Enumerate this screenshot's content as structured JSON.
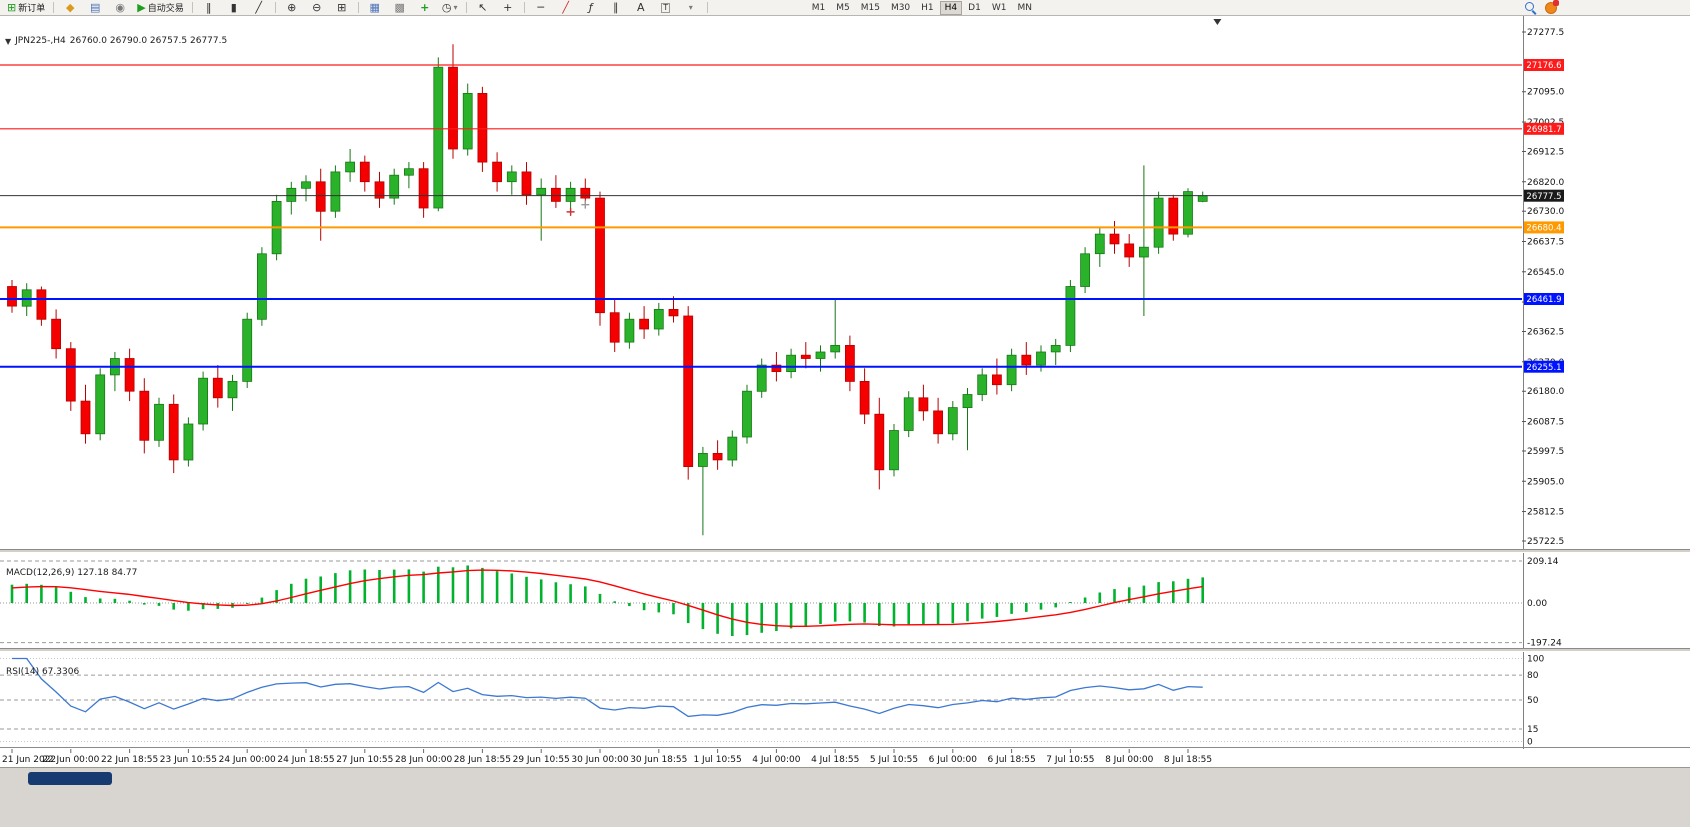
{
  "ui": {
    "collapse_caret": "▼"
  },
  "toolbar": {
    "buttons": {
      "new_order": {
        "icon": "⊞",
        "label": "新订单"
      },
      "profiles": {
        "glyph": "◆"
      },
      "print": {
        "glyph": "▤"
      },
      "signals": {
        "glyph": "◉"
      },
      "auto_trading": {
        "icon": "▶",
        "label": "自动交易"
      },
      "chart_bars": {
        "glyph": "‖"
      },
      "chart_candles": {
        "glyph": "▮"
      },
      "chart_line": {
        "glyph": "╱"
      },
      "zoom_in": {
        "glyph": "⊕"
      },
      "zoom_out": {
        "glyph": "⊖"
      },
      "tile_windows": {
        "glyph": "⊞"
      },
      "new_chart": {
        "glyph": "▦"
      },
      "arrange": {
        "glyph": "▩"
      },
      "indicators": {
        "glyph": "+"
      },
      "periods": {
        "glyph": "◷",
        "caret": "▾"
      },
      "cursor": {
        "glyph": "↖"
      },
      "crosshair": {
        "glyph": "+"
      },
      "hline": {
        "glyph": "─"
      },
      "trendline": {
        "glyph": "╱"
      },
      "fibonacci": {
        "glyph": "ƒ"
      },
      "channel": {
        "glyph": "∥"
      },
      "text": {
        "glyph": "A"
      },
      "label": {
        "glyph": "T"
      },
      "arrows": {
        "glyph": "▾"
      }
    },
    "timeframes": [
      "M1",
      "M5",
      "M15",
      "M30",
      "H1",
      "H4",
      "D1",
      "W1",
      "MN"
    ],
    "active_timeframe": "H4"
  },
  "chart_data": [
    {
      "type": "candlestick",
      "symbol": "JPN225-",
      "timeframe": "H4",
      "title": "JPN225-,H4",
      "ohlc_display": "26760.0 26790.0 26757.5 26777.5",
      "ylim": [
        25722.5,
        27277.5
      ],
      "y_ticks": [
        "27277.5",
        "27095.0",
        "27002.5",
        "26912.5",
        "26820.0",
        "26730.0",
        "26637.5",
        "26545.0",
        "26452.5",
        "26362.5",
        "26270.0",
        "26180.0",
        "26087.5",
        "25997.5",
        "25905.0",
        "25812.5",
        "25722.5"
      ],
      "x_labels": [
        "21 Jun 2022",
        "22 Jun 00:00",
        "22 Jun 18:55",
        "23 Jun 10:55",
        "24 Jun 00:00",
        "24 Jun 18:55",
        "27 Jun 10:55",
        "28 Jun 00:00",
        "28 Jun 18:55",
        "29 Jun 10:55",
        "30 Jun 00:00",
        "30 Jun 18:55",
        "1 Jul 10:55",
        "4 Jul 00:00",
        "4 Jul 18:55",
        "5 Jul 10:55",
        "6 Jul 00:00",
        "6 Jul 18:55",
        "7 Jul 10:55",
        "8 Jul 00:00",
        "8 Jul 18:55"
      ],
      "bars_per_label": 4,
      "up_color": "#2ab32a",
      "up_stroke": "#157815",
      "down_color": "#f50000",
      "down_stroke": "#b80000",
      "price_lines": [
        {
          "value": 27176.6,
          "color": "#ff1a1a",
          "width": 1.2,
          "name": "resistance-1"
        },
        {
          "value": 26981.7,
          "color": "#ff1a1a",
          "width": 1.2,
          "name": "resistance-2"
        },
        {
          "value": 26680.4,
          "color": "#ff9900",
          "width": 2,
          "name": "pivot"
        },
        {
          "value": 26461.9,
          "color": "#0013ff",
          "width": 2,
          "name": "support-1"
        },
        {
          "value": 26255.1,
          "color": "#0013ff",
          "width": 2,
          "name": "support-2"
        }
      ],
      "current_price": {
        "value": 26777.5,
        "color": "#333333",
        "label_bg": "#1a1a1a"
      },
      "markers": [
        {
          "bar": 38,
          "price": 26728,
          "color": "#cc3333"
        },
        {
          "bar": 39,
          "price": 26750,
          "color": "#999999"
        }
      ],
      "shift_marker_bar": 82,
      "candles": [
        [
          26500,
          26520,
          26420,
          26440
        ],
        [
          26440,
          26510,
          26410,
          26490
        ],
        [
          26490,
          26500,
          26380,
          26400
        ],
        [
          26400,
          26430,
          26280,
          26310
        ],
        [
          26310,
          26330,
          26120,
          26150
        ],
        [
          26150,
          26200,
          26020,
          26050
        ],
        [
          26050,
          26250,
          26030,
          26230
        ],
        [
          26230,
          26300,
          26180,
          26280
        ],
        [
          26280,
          26310,
          26150,
          26180
        ],
        [
          26180,
          26220,
          25990,
          26030
        ],
        [
          26030,
          26160,
          26010,
          26140
        ],
        [
          26140,
          26170,
          25930,
          25970
        ],
        [
          25970,
          26100,
          25950,
          26080
        ],
        [
          26080,
          26240,
          26060,
          26220
        ],
        [
          26220,
          26260,
          26130,
          26160
        ],
        [
          26160,
          26230,
          26120,
          26210
        ],
        [
          26210,
          26420,
          26190,
          26400
        ],
        [
          26400,
          26620,
          26380,
          26600
        ],
        [
          26600,
          26780,
          26580,
          26760
        ],
        [
          26760,
          26820,
          26720,
          26800
        ],
        [
          26800,
          26840,
          26760,
          26820
        ],
        [
          26820,
          26860,
          26640,
          26730
        ],
        [
          26730,
          26870,
          26710,
          26850
        ],
        [
          26850,
          26920,
          26820,
          26880
        ],
        [
          26880,
          26900,
          26790,
          26820
        ],
        [
          26820,
          26850,
          26740,
          26770
        ],
        [
          26770,
          26860,
          26750,
          26840
        ],
        [
          26840,
          26880,
          26800,
          26860
        ],
        [
          26860,
          26880,
          26710,
          26740
        ],
        [
          26740,
          27200,
          26730,
          27170
        ],
        [
          27170,
          27240,
          26890,
          26920
        ],
        [
          26920,
          27120,
          26900,
          27090
        ],
        [
          27090,
          27110,
          26850,
          26880
        ],
        [
          26880,
          26910,
          26790,
          26820
        ],
        [
          26820,
          26870,
          26780,
          26850
        ],
        [
          26850,
          26880,
          26750,
          26780
        ],
        [
          26780,
          26830,
          26640,
          26800
        ],
        [
          26800,
          26840,
          26740,
          26760
        ],
        [
          26760,
          26820,
          26720,
          26800
        ],
        [
          26800,
          26830,
          26750,
          26770
        ],
        [
          26770,
          26790,
          26380,
          26420
        ],
        [
          26420,
          26460,
          26300,
          26330
        ],
        [
          26330,
          26420,
          26310,
          26400
        ],
        [
          26400,
          26440,
          26340,
          26370
        ],
        [
          26370,
          26450,
          26350,
          26430
        ],
        [
          26430,
          26470,
          26390,
          26410
        ],
        [
          26410,
          26440,
          25910,
          25950
        ],
        [
          25950,
          26010,
          25740,
          25990
        ],
        [
          25990,
          26030,
          25940,
          25970
        ],
        [
          25970,
          26060,
          25950,
          26040
        ],
        [
          26040,
          26200,
          26020,
          26180
        ],
        [
          26180,
          26280,
          26160,
          26260
        ],
        [
          26260,
          26300,
          26210,
          26240
        ],
        [
          26240,
          26310,
          26220,
          26290
        ],
        [
          26290,
          26330,
          26250,
          26280
        ],
        [
          26280,
          26320,
          26240,
          26300
        ],
        [
          26300,
          26460,
          26280,
          26320
        ],
        [
          26320,
          26350,
          26180,
          26210
        ],
        [
          26210,
          26250,
          26080,
          26110
        ],
        [
          26110,
          26160,
          25880,
          25940
        ],
        [
          25940,
          26080,
          25920,
          26060
        ],
        [
          26060,
          26180,
          26040,
          26160
        ],
        [
          26160,
          26200,
          26090,
          26120
        ],
        [
          26120,
          26160,
          26020,
          26050
        ],
        [
          26050,
          26150,
          26030,
          26130
        ],
        [
          26130,
          26190,
          26000,
          26170
        ],
        [
          26170,
          26250,
          26150,
          26230
        ],
        [
          26230,
          26280,
          26170,
          26200
        ],
        [
          26200,
          26310,
          26180,
          26290
        ],
        [
          26290,
          26330,
          26230,
          26260
        ],
        [
          26260,
          26320,
          26240,
          26300
        ],
        [
          26300,
          26340,
          26260,
          26320
        ],
        [
          26320,
          26520,
          26300,
          26500
        ],
        [
          26500,
          26620,
          26480,
          26600
        ],
        [
          26600,
          26680,
          26560,
          26660
        ],
        [
          26660,
          26700,
          26600,
          26630
        ],
        [
          26630,
          26660,
          26560,
          26590
        ],
        [
          26590,
          26870,
          26410,
          26620
        ],
        [
          26620,
          26790,
          26600,
          26770
        ],
        [
          26770,
          26780,
          26640,
          26660
        ],
        [
          26660,
          26800,
          26650,
          26790
        ],
        [
          26760,
          26790,
          26757.5,
          26777.5
        ]
      ]
    },
    {
      "type": "macd",
      "label": "MACD(12,26,9) 127.18 84.77",
      "fast": 12,
      "slow": 26,
      "signal": 9,
      "macd_value": 127.18,
      "signal_value": 84.77,
      "y_ticks": [
        "209.14",
        "0.00",
        "-197.24"
      ],
      "tick_values": [
        209.14,
        0,
        -197.24
      ],
      "histogram_color": "#00b22d",
      "signal_color": "#ff0000"
    },
    {
      "type": "rsi",
      "label": "RSI(14) 67.3306",
      "period": 14,
      "value": 67.3306,
      "levels": [
        80,
        50,
        15
      ],
      "y_ticks": [
        "100",
        "80",
        "50",
        "15",
        "0"
      ],
      "tick_values": [
        100,
        80,
        50,
        15,
        0
      ],
      "line_color": "#3c78d2"
    }
  ]
}
